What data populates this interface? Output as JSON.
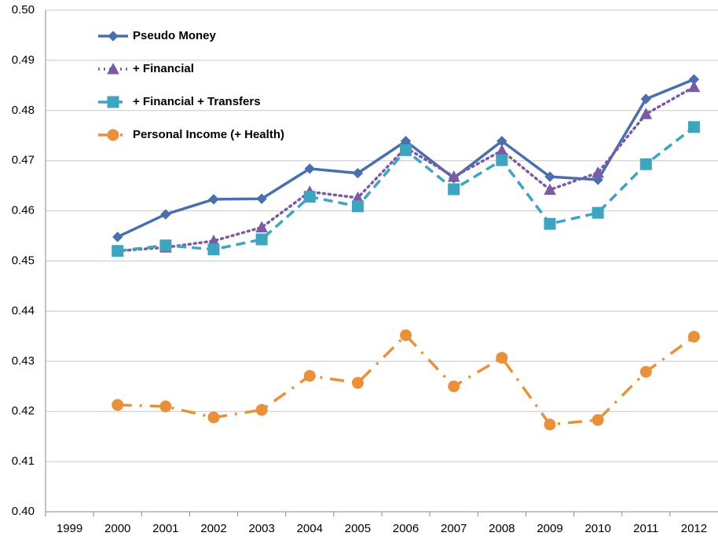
{
  "chart_data": {
    "type": "line",
    "categories": [
      "1999",
      "2000",
      "2001",
      "2002",
      "2003",
      "2004",
      "2005",
      "2006",
      "2007",
      "2008",
      "2009",
      "2010",
      "2011",
      "2012"
    ],
    "series": [
      {
        "name": "Pseudo Money",
        "color": "#4a6fae",
        "dash": "solid",
        "marker": "diamond",
        "values": [
          null,
          0.4548,
          0.4593,
          0.4623,
          0.4624,
          0.4684,
          0.4675,
          0.4739,
          0.4665,
          0.4739,
          0.4668,
          0.4662,
          0.4823,
          0.4862
        ]
      },
      {
        "name": "+ Financial",
        "color": "#7b5aa6",
        "dash": "dotted",
        "marker": "triangle",
        "values": [
          null,
          0.452,
          0.4527,
          0.454,
          0.4567,
          0.4638,
          0.4626,
          0.4726,
          0.4668,
          0.472,
          0.4642,
          0.4676,
          0.4793,
          0.4847
        ]
      },
      {
        "name": "+ Financial + Transfers",
        "color": "#3ea5c0",
        "dash": "dashed",
        "marker": "square",
        "values": [
          null,
          0.452,
          0.4531,
          0.4523,
          0.4543,
          0.4628,
          0.4609,
          0.4721,
          0.4643,
          0.4701,
          0.4574,
          0.4596,
          0.4693,
          0.4767
        ]
      },
      {
        "name": "Personal Income (+ Health)",
        "color": "#e8913a",
        "dash": "dashdot",
        "marker": "circle",
        "values": [
          null,
          0.4213,
          0.421,
          0.4188,
          0.4203,
          0.4271,
          0.4257,
          0.4352,
          0.425,
          0.4307,
          0.4174,
          0.4183,
          0.4279,
          0.4349
        ]
      }
    ],
    "ylim": [
      0.4,
      0.5
    ],
    "yticks": [
      {
        "value": 0.4,
        "label": "0.40"
      },
      0.41,
      0.42,
      0.43,
      0.44,
      0.45,
      0.46,
      0.47,
      0.48,
      0.49,
      {
        "value": 0.5,
        "label": "0.50"
      }
    ],
    "grid": true,
    "legend": "top-left"
  }
}
